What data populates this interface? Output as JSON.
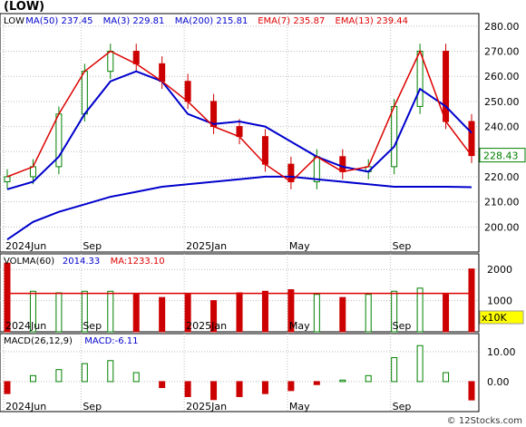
{
  "title": "(LOW)",
  "credit": "© 12Stocks.com",
  "price_panel": {
    "legend": [
      {
        "label": "LOW",
        "color": "#000000"
      },
      {
        "label": "MA(50)",
        "value": "237.45",
        "color": "#0000cc"
      },
      {
        "label": "MA(3)",
        "value": "229.81",
        "color": "#0000cc"
      },
      {
        "label": "MA(200)",
        "value": "215.81",
        "color": "#0000cc"
      },
      {
        "label": "EMA(7)",
        "value": "235.87",
        "color": "#dd0000"
      },
      {
        "label": "EMA(13)",
        "value": "239.44",
        "color": "#dd0000"
      }
    ],
    "last_price": "228.43",
    "y_ticks": [
      "280.00",
      "270.00",
      "260.00",
      "250.00",
      "240.00",
      "230.00",
      "220.00",
      "210.00",
      "200.00"
    ]
  },
  "volume_panel": {
    "legend": [
      {
        "label": "VOLMA(60)",
        "color": "#000000"
      },
      {
        "label": "2014.33",
        "color": "#0000cc"
      },
      {
        "label": "MA:1233.10",
        "color": "#dd0000"
      }
    ],
    "y_ticks": [
      "2000",
      "1000"
    ],
    "unit_label": "x10K"
  },
  "macd_panel": {
    "legend": [
      {
        "label": "MACD(26,12,9)",
        "color": "#000000"
      },
      {
        "label": "MACD:-6.11",
        "color": "#0000cc"
      }
    ],
    "y_ticks": [
      "10.00",
      "0.00"
    ]
  },
  "x_labels": [
    "2024Jun",
    "Sep",
    "2025Jan",
    "May",
    "Sep"
  ],
  "colors": {
    "up": "#008000",
    "down": "#cc0000",
    "ma_blue": "#0000cc",
    "ema_red": "#dd0000",
    "grid": "#bbbbbb"
  },
  "chart_data": {
    "type": "candlestick",
    "x": [
      "2024-05",
      "2024-06",
      "2024-07",
      "2024-08",
      "2024-09",
      "2024-10",
      "2024-11",
      "2024-12",
      "2025-01",
      "2025-02",
      "2025-03",
      "2025-04",
      "2025-05",
      "2025-06",
      "2025-07",
      "2025-08",
      "2025-09",
      "2025-10",
      "2025-11"
    ],
    "close": [
      220,
      224,
      245,
      262,
      270,
      265,
      258,
      250,
      240,
      236,
      225,
      218,
      228,
      222,
      224,
      248,
      270,
      242,
      228.43
    ],
    "ma200": [
      195,
      202,
      206,
      209,
      212,
      214,
      216,
      217,
      218,
      219,
      220,
      220,
      219,
      218,
      217,
      216,
      216,
      216,
      215.81
    ],
    "ma50": [
      215,
      218,
      228,
      245,
      258,
      262,
      258,
      245,
      241,
      242,
      240,
      234,
      228,
      224,
      222,
      232,
      255,
      248,
      237.45
    ],
    "volume": [
      2200,
      1300,
      1250,
      1300,
      1300,
      1200,
      1100,
      1200,
      1000,
      1250,
      1300,
      1350,
      1200,
      1100,
      1200,
      1300,
      1400,
      1200,
      2014.33
    ],
    "volume_ma": [
      1233,
      1233,
      1233,
      1233,
      1233,
      1233,
      1233,
      1233,
      1233,
      1233,
      1233,
      1233,
      1233,
      1233,
      1233,
      1233,
      1233,
      1233,
      1233.1
    ],
    "macd_hist": [
      -4,
      2,
      4,
      6,
      7,
      3,
      -2,
      -5,
      -6,
      -5,
      -4,
      -3,
      -1,
      0.5,
      2,
      8,
      12,
      3,
      -6.11
    ],
    "price_ylim": [
      190,
      285
    ],
    "volume_ylim": [
      0,
      2500
    ],
    "macd_ylim": [
      -10,
      16
    ]
  }
}
